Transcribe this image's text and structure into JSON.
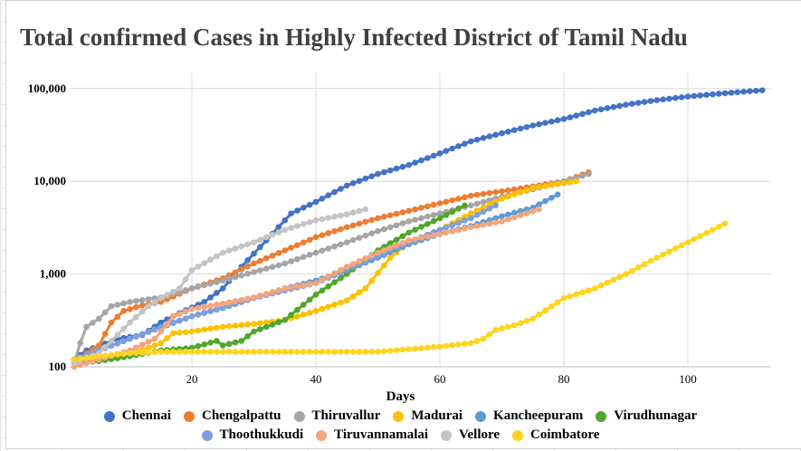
{
  "chart_data": {
    "type": "line",
    "title": "Total confirmed Cases in Highly Infected District of Tamil Nadu",
    "xlabel": "Days",
    "ylabel": "",
    "xlim": [
      0,
      113
    ],
    "ylim": [
      100,
      150000
    ],
    "yscale": "log",
    "x_ticks": [
      "20",
      "40",
      "60",
      "80",
      "100"
    ],
    "y_ticks": [
      "100",
      "1,000",
      "10,000",
      "100,000"
    ],
    "grid": true,
    "legend_position": "bottom",
    "series": [
      {
        "name": "Chennai",
        "color": "#4472C4",
        "points": [
          [
            1,
            120
          ],
          [
            3,
            150
          ],
          [
            8,
            200
          ],
          [
            12,
            220
          ],
          [
            15,
            300
          ],
          [
            18,
            380
          ],
          [
            22,
            500
          ],
          [
            25,
            700
          ],
          [
            28,
            1200
          ],
          [
            32,
            2300
          ],
          [
            36,
            4500
          ],
          [
            40,
            6000
          ],
          [
            45,
            9000
          ],
          [
            50,
            12000
          ],
          [
            55,
            15000
          ],
          [
            60,
            20000
          ],
          [
            65,
            27000
          ],
          [
            70,
            33000
          ],
          [
            75,
            40000
          ],
          [
            80,
            47000
          ],
          [
            85,
            58000
          ],
          [
            90,
            67000
          ],
          [
            95,
            75000
          ],
          [
            100,
            82000
          ],
          [
            105,
            88000
          ],
          [
            112,
            96000
          ]
        ]
      },
      {
        "name": "Chengalpattu",
        "color": "#ED7D31",
        "points": [
          [
            1,
            110
          ],
          [
            3,
            140
          ],
          [
            5,
            170
          ],
          [
            7,
            300
          ],
          [
            9,
            400
          ],
          [
            12,
            460
          ],
          [
            15,
            500
          ],
          [
            20,
            700
          ],
          [
            25,
            900
          ],
          [
            30,
            1300
          ],
          [
            35,
            1800
          ],
          [
            40,
            2500
          ],
          [
            45,
            3200
          ],
          [
            50,
            4000
          ],
          [
            55,
            4800
          ],
          [
            60,
            5800
          ],
          [
            65,
            7000
          ],
          [
            70,
            7800
          ],
          [
            75,
            8800
          ],
          [
            80,
            10000
          ],
          [
            84,
            12500
          ]
        ]
      },
      {
        "name": "Thiruvallur",
        "color": "#A5A5A5",
        "points": [
          [
            1,
            110
          ],
          [
            2,
            180
          ],
          [
            3,
            270
          ],
          [
            5,
            330
          ],
          [
            7,
            450
          ],
          [
            10,
            500
          ],
          [
            15,
            560
          ],
          [
            20,
            700
          ],
          [
            25,
            850
          ],
          [
            30,
            1050
          ],
          [
            35,
            1300
          ],
          [
            40,
            1700
          ],
          [
            45,
            2200
          ],
          [
            50,
            2900
          ],
          [
            55,
            3700
          ],
          [
            60,
            4500
          ],
          [
            65,
            5500
          ],
          [
            70,
            6800
          ],
          [
            75,
            8200
          ],
          [
            80,
            10000
          ],
          [
            84,
            12000
          ]
        ]
      },
      {
        "name": "Madurai",
        "color": "#FFC000",
        "points": [
          [
            1,
            110
          ],
          [
            5,
            120
          ],
          [
            10,
            140
          ],
          [
            13,
            160
          ],
          [
            15,
            180
          ],
          [
            17,
            230
          ],
          [
            20,
            240
          ],
          [
            25,
            270
          ],
          [
            30,
            290
          ],
          [
            35,
            320
          ],
          [
            40,
            400
          ],
          [
            45,
            520
          ],
          [
            48,
            700
          ],
          [
            52,
            1500
          ],
          [
            55,
            2200
          ],
          [
            60,
            3000
          ],
          [
            65,
            4500
          ],
          [
            70,
            6500
          ],
          [
            75,
            8500
          ],
          [
            82,
            10000
          ]
        ]
      },
      {
        "name": "Kancheepuram",
        "color": "#5B9BD5",
        "points": [
          [
            1,
            120
          ],
          [
            5,
            150
          ],
          [
            10,
            200
          ],
          [
            15,
            270
          ],
          [
            20,
            350
          ],
          [
            25,
            430
          ],
          [
            30,
            550
          ],
          [
            35,
            700
          ],
          [
            40,
            850
          ],
          [
            45,
            1100
          ],
          [
            50,
            1500
          ],
          [
            55,
            2100
          ],
          [
            60,
            2700
          ],
          [
            65,
            3300
          ],
          [
            70,
            4200
          ],
          [
            75,
            5200
          ],
          [
            79,
            7200
          ]
        ]
      },
      {
        "name": "Virudhunagar",
        "color": "#4EA72E",
        "points": [
          [
            2,
            110
          ],
          [
            5,
            115
          ],
          [
            10,
            130
          ],
          [
            15,
            150
          ],
          [
            20,
            160
          ],
          [
            24,
            190
          ],
          [
            25,
            170
          ],
          [
            28,
            190
          ],
          [
            30,
            240
          ],
          [
            35,
            320
          ],
          [
            40,
            600
          ],
          [
            45,
            1000
          ],
          [
            50,
            1800
          ],
          [
            55,
            2800
          ],
          [
            60,
            4000
          ],
          [
            64,
            5500
          ]
        ]
      },
      {
        "name": "Thoothukkudi",
        "color": "#7F9FDC",
        "points": [
          [
            1,
            120
          ],
          [
            10,
            200
          ],
          [
            20,
            350
          ],
          [
            30,
            550
          ],
          [
            40,
            800
          ],
          [
            45,
            1100
          ],
          [
            50,
            1600
          ],
          [
            55,
            2200
          ],
          [
            60,
            3000
          ],
          [
            65,
            4000
          ],
          [
            69,
            5500
          ]
        ]
      },
      {
        "name": "Tiruvannamalai",
        "color": "#F4A57C",
        "points": [
          [
            1,
            100
          ],
          [
            5,
            120
          ],
          [
            10,
            150
          ],
          [
            14,
            200
          ],
          [
            17,
            350
          ],
          [
            20,
            420
          ],
          [
            25,
            480
          ],
          [
            30,
            560
          ],
          [
            35,
            700
          ],
          [
            40,
            800
          ],
          [
            45,
            1200
          ],
          [
            50,
            1700
          ],
          [
            55,
            2300
          ],
          [
            60,
            2700
          ],
          [
            65,
            3200
          ],
          [
            70,
            3700
          ],
          [
            76,
            5000
          ]
        ]
      },
      {
        "name": "Vellore",
        "color": "#C4C4C4",
        "points": [
          [
            1,
            110
          ],
          [
            5,
            140
          ],
          [
            10,
            300
          ],
          [
            13,
            450
          ],
          [
            15,
            550
          ],
          [
            18,
            700
          ],
          [
            20,
            1100
          ],
          [
            25,
            1700
          ],
          [
            30,
            2200
          ],
          [
            35,
            3000
          ],
          [
            40,
            3800
          ],
          [
            45,
            4400
          ],
          [
            48,
            5000
          ]
        ]
      },
      {
        "name": "Coimbatore",
        "color": "#FFD320",
        "points": [
          [
            1,
            120
          ],
          [
            5,
            130
          ],
          [
            10,
            140
          ],
          [
            15,
            145
          ],
          [
            30,
            145
          ],
          [
            50,
            145
          ],
          [
            55,
            155
          ],
          [
            60,
            165
          ],
          [
            65,
            180
          ],
          [
            67,
            200
          ],
          [
            69,
            250
          ],
          [
            72,
            280
          ],
          [
            75,
            330
          ],
          [
            80,
            550
          ],
          [
            85,
            700
          ],
          [
            90,
            1000
          ],
          [
            95,
            1500
          ],
          [
            100,
            2200
          ],
          [
            106,
            3500
          ]
        ]
      }
    ]
  }
}
